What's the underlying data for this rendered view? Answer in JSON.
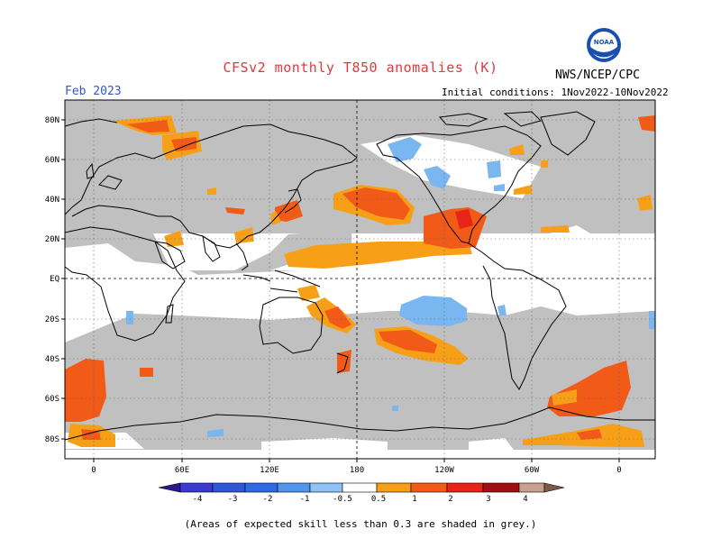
{
  "header": {
    "title": "CFSv2 monthly T850 anomalies (K)",
    "month": "Feb 2023",
    "agency": "NWS/NCEP/CPC",
    "initial_conditions": "Initial conditions: 1Nov2022-10Nov2022",
    "logo_text": "NOAA"
  },
  "axes": {
    "lat_labels": [
      "80N",
      "60N",
      "40N",
      "20N",
      "EQ",
      "20S",
      "40S",
      "60S",
      "80S"
    ],
    "lon_labels": [
      "0",
      "60E",
      "120E",
      "180",
      "120W",
      "60W",
      "0"
    ]
  },
  "colorbar": {
    "ticks": [
      "-4",
      "-3",
      "-2",
      "-1",
      "-0.5",
      "0.5",
      "1",
      "2",
      "3",
      "4"
    ],
    "colors": [
      "#2a1a8c",
      "#3a3ad0",
      "#2f6ae6",
      "#4f96ea",
      "#8fc1f5",
      "#ffffff",
      "#f7a017",
      "#f25a18",
      "#e82318",
      "#a00d12",
      "#c8a090",
      "#7a5a4a"
    ]
  },
  "footnote": "(Areas of expected skill less than 0.3 are shaded in grey.)"
}
